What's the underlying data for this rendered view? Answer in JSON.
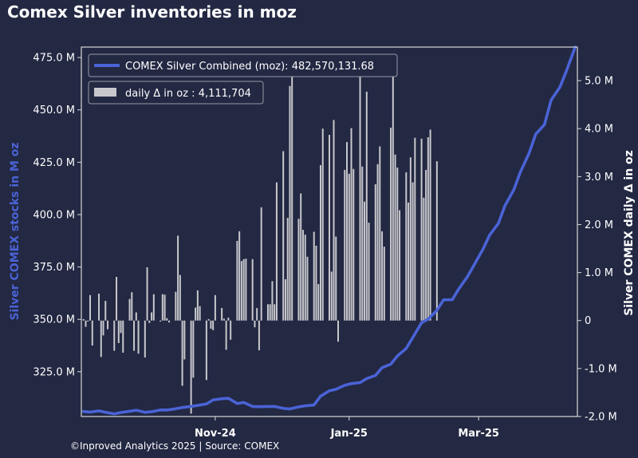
{
  "colors": {
    "background": "#232843",
    "line": "#4a63d6",
    "bars": "#c8c8cc",
    "text": "#ffffff",
    "left_axis_label": "#4a63d6",
    "legend_bg": "#232843",
    "legend_border": "#9a9aa6"
  },
  "chart_data": {
    "type": "line+bar",
    "title": "Comex Silver inventories in moz",
    "footer": "©Inproved Analytics 2025 | Source: COMEX",
    "ylabel_left": "Silver COMEX stocks in M oz",
    "ylabel_right": "Silver COMEX daily Δ in oz",
    "legend": [
      {
        "label": "COMEX Silver Combined (moz): 482,570,131.68",
        "type": "line"
      },
      {
        "label": "daily Δ in oz : 4,111,704",
        "type": "bar"
      }
    ],
    "left_axis": {
      "ylim": [
        303.6,
        480.0
      ],
      "ticks": [
        325,
        350,
        375,
        400,
        425,
        450,
        475
      ],
      "tick_labels": [
        "325.0 M",
        "350.0 M",
        "375.0 M",
        "400.0 M",
        "425.0 M",
        "450.0 M",
        "475.0 M"
      ]
    },
    "right_axis": {
      "ylim": [
        -2.0,
        5.7
      ],
      "ticks": [
        -2,
        -1,
        0,
        1,
        2,
        3,
        4,
        5
      ],
      "tick_labels": [
        "-2.0 M",
        "-1.0 M",
        "0",
        "1.0 M",
        "2.0 M",
        "3.0 M",
        "4.0 M",
        "5.0 M"
      ]
    },
    "x_axis": {
      "range": [
        "2024-09-01",
        "2025-04-15"
      ],
      "ticks": [
        "2024-11-01",
        "2025-01-01",
        "2025-03-01"
      ],
      "tick_labels": [
        "Nov-24",
        "Jan-25",
        "Mar-25"
      ]
    },
    "line_series": {
      "name": "COMEX Silver Combined (moz)",
      "points": [
        [
          "2024-09-02",
          306.0
        ],
        [
          "2024-09-05",
          305.7
        ],
        [
          "2024-09-09",
          306.3
        ],
        [
          "2024-09-12",
          305.6
        ],
        [
          "2024-09-16",
          304.9
        ],
        [
          "2024-09-19",
          305.5
        ],
        [
          "2024-09-23",
          306.1
        ],
        [
          "2024-09-26",
          306.6
        ],
        [
          "2024-09-30",
          305.6
        ],
        [
          "2024-10-03",
          305.9
        ],
        [
          "2024-10-07",
          306.7
        ],
        [
          "2024-10-10",
          306.7
        ],
        [
          "2024-10-14",
          307.3
        ],
        [
          "2024-10-17",
          307.9
        ],
        [
          "2024-10-21",
          308.4
        ],
        [
          "2024-10-24",
          308.9
        ],
        [
          "2024-10-28",
          309.6
        ],
        [
          "2024-10-31",
          311.5
        ],
        [
          "2024-11-04",
          312.1
        ],
        [
          "2024-11-07",
          312.3
        ],
        [
          "2024-11-11",
          309.8
        ],
        [
          "2024-11-14",
          310.3
        ],
        [
          "2024-11-18",
          308.4
        ],
        [
          "2024-11-21",
          308.3
        ],
        [
          "2024-11-25",
          308.4
        ],
        [
          "2024-11-28",
          308.4
        ],
        [
          "2024-12-02",
          307.5
        ],
        [
          "2024-12-05",
          307.2
        ],
        [
          "2024-12-09",
          308.2
        ],
        [
          "2024-12-12",
          308.7
        ],
        [
          "2024-12-16",
          309.1
        ],
        [
          "2024-12-19",
          313.3
        ],
        [
          "2024-12-23",
          315.9
        ],
        [
          "2024-12-26",
          316.6
        ],
        [
          "2024-12-30",
          318.5
        ],
        [
          "2025-01-02",
          319.3
        ],
        [
          "2025-01-06",
          319.8
        ],
        [
          "2025-01-09",
          321.7
        ],
        [
          "2025-01-13",
          323.2
        ],
        [
          "2025-01-16",
          326.9
        ],
        [
          "2025-01-20",
          328.6
        ],
        [
          "2025-01-23",
          332.5
        ],
        [
          "2025-01-27",
          336.1
        ],
        [
          "2025-01-30",
          341.3
        ],
        [
          "2025-02-03",
          348.4
        ],
        [
          "2025-02-06",
          350.1
        ],
        [
          "2025-02-10",
          354.3
        ],
        [
          "2025-02-13",
          359.3
        ],
        [
          "2025-02-17",
          359.4
        ],
        [
          "2025-02-20",
          364.6
        ],
        [
          "2025-02-24",
          370.5
        ],
        [
          "2025-02-27",
          376.1
        ],
        [
          "2025-03-03",
          383.5
        ],
        [
          "2025-03-06",
          390.2
        ],
        [
          "2025-03-10",
          395.8
        ],
        [
          "2025-03-13",
          404.3
        ],
        [
          "2025-03-17",
          411.8
        ],
        [
          "2025-03-20",
          420.3
        ],
        [
          "2025-03-24",
          429.3
        ],
        [
          "2025-03-27",
          438.4
        ],
        [
          "2025-03-31",
          443.0
        ],
        [
          "2025-04-03",
          454.6
        ],
        [
          "2025-04-07",
          460.8
        ],
        [
          "2025-04-10",
          468.6
        ],
        [
          "2025-04-14",
          480.0
        ]
      ]
    },
    "bar_series": {
      "name": "daily Δ in oz",
      "values_millions": [
        0.03,
        -0.13,
        -0.02,
        0.53,
        -0.52,
        0.56,
        -0.76,
        -0.31,
        0.41,
        -0.18,
        -0.63,
        0.91,
        -0.47,
        -0.26,
        -0.67,
        0.45,
        0.59,
        -0.63,
        0.17,
        -0.69,
        -0.77,
        1.11,
        -0.05,
        0.17,
        0.55,
        -0.02,
        0.55,
        0.54,
        0.05,
        -0.04,
        0.6,
        1.77,
        0.95,
        -1.36,
        -0.81,
        -1.94,
        -1.19,
        0.27,
        0.63,
        0.3,
        -1.24,
        0.03,
        -0.17,
        -0.2,
        0.53,
        0.26,
        0.04,
        -0.61,
        0.06,
        -0.4,
        1.66,
        1.86,
        1.24,
        1.28,
        1.29,
        1.28,
        -0.14,
        0.26,
        -0.62,
        2.36,
        0.34,
        0.34,
        0.82,
        0.34,
        2.88,
        3.53,
        0.86,
        2.14,
        4.89,
        5.1,
        2.12,
        2.65,
        1.89,
        1.79,
        1.33,
        1.85,
        1.56,
        0.76,
        3.24,
        4.0,
        3.87,
        1.02,
        4.18,
        1.75,
        -0.44,
        3.14,
        3.72,
        3.06,
        4.01,
        3.16,
        5.16,
        3.21,
        2.48,
        4.77,
        2.04,
        2.84,
        3.26,
        3.63,
        1.86,
        1.54,
        4.02,
        5.19,
        3.46,
        3.19,
        2.3,
        3.09,
        2.46,
        3.4,
        2.88,
        3.81,
        3.79,
        2.56,
        3.14,
        3.82,
        3.98,
        3.32
      ]
    }
  }
}
